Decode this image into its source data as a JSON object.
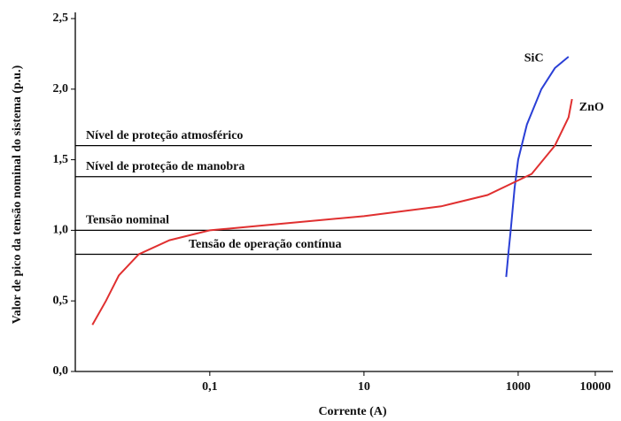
{
  "chart_data": {
    "type": "line",
    "x_label": "Corrente (A)",
    "y_label": "Valor de pico da tensão nominal do sistema (p.u.)",
    "xscale": "log",
    "xlim": [
      0.0018,
      17000
    ],
    "xticks": [
      {
        "value": 0.1,
        "label": "0,1"
      },
      10,
      1000,
      10000
    ],
    "ylim": [
      0,
      2.5
    ],
    "yticks": [
      {
        "value": 0,
        "label": "0,0"
      },
      {
        "value": 0.5,
        "label": "0,5"
      },
      {
        "value": 1,
        "label": "1,0"
      },
      {
        "value": 1.5,
        "label": "1,5"
      },
      {
        "value": 2,
        "label": "2,0"
      },
      {
        "value": 2.5,
        "label": "2,5"
      }
    ],
    "reference_lines": [
      {
        "value": 1.6,
        "label": "Nível de proteção atmosférico"
      },
      {
        "value": 1.38,
        "label": "Nível de proteção de manobra"
      },
      {
        "value": 1.0,
        "label": "Tensão nominal"
      },
      {
        "value": 0.83,
        "label": "Tensão de operação contínua"
      }
    ],
    "series": [
      {
        "name": "SiC",
        "color": "#2a3fd6",
        "x": [
          700,
          750,
          800,
          900,
          1000,
          1300,
          2000,
          3000,
          4500
        ],
        "values": [
          0.67,
          0.85,
          1.0,
          1.3,
          1.5,
          1.75,
          2.0,
          2.15,
          2.23
        ]
      },
      {
        "name": "ZnO",
        "color": "#e03030",
        "x": [
          0.003,
          0.0045,
          0.0066,
          0.012,
          0.03,
          0.1,
          1,
          10,
          100,
          400,
          1500,
          3000,
          4500,
          5000
        ],
        "values": [
          0.33,
          0.5,
          0.68,
          0.83,
          0.93,
          1.0,
          1.05,
          1.1,
          1.17,
          1.25,
          1.4,
          1.6,
          1.8,
          1.93
        ]
      }
    ]
  }
}
